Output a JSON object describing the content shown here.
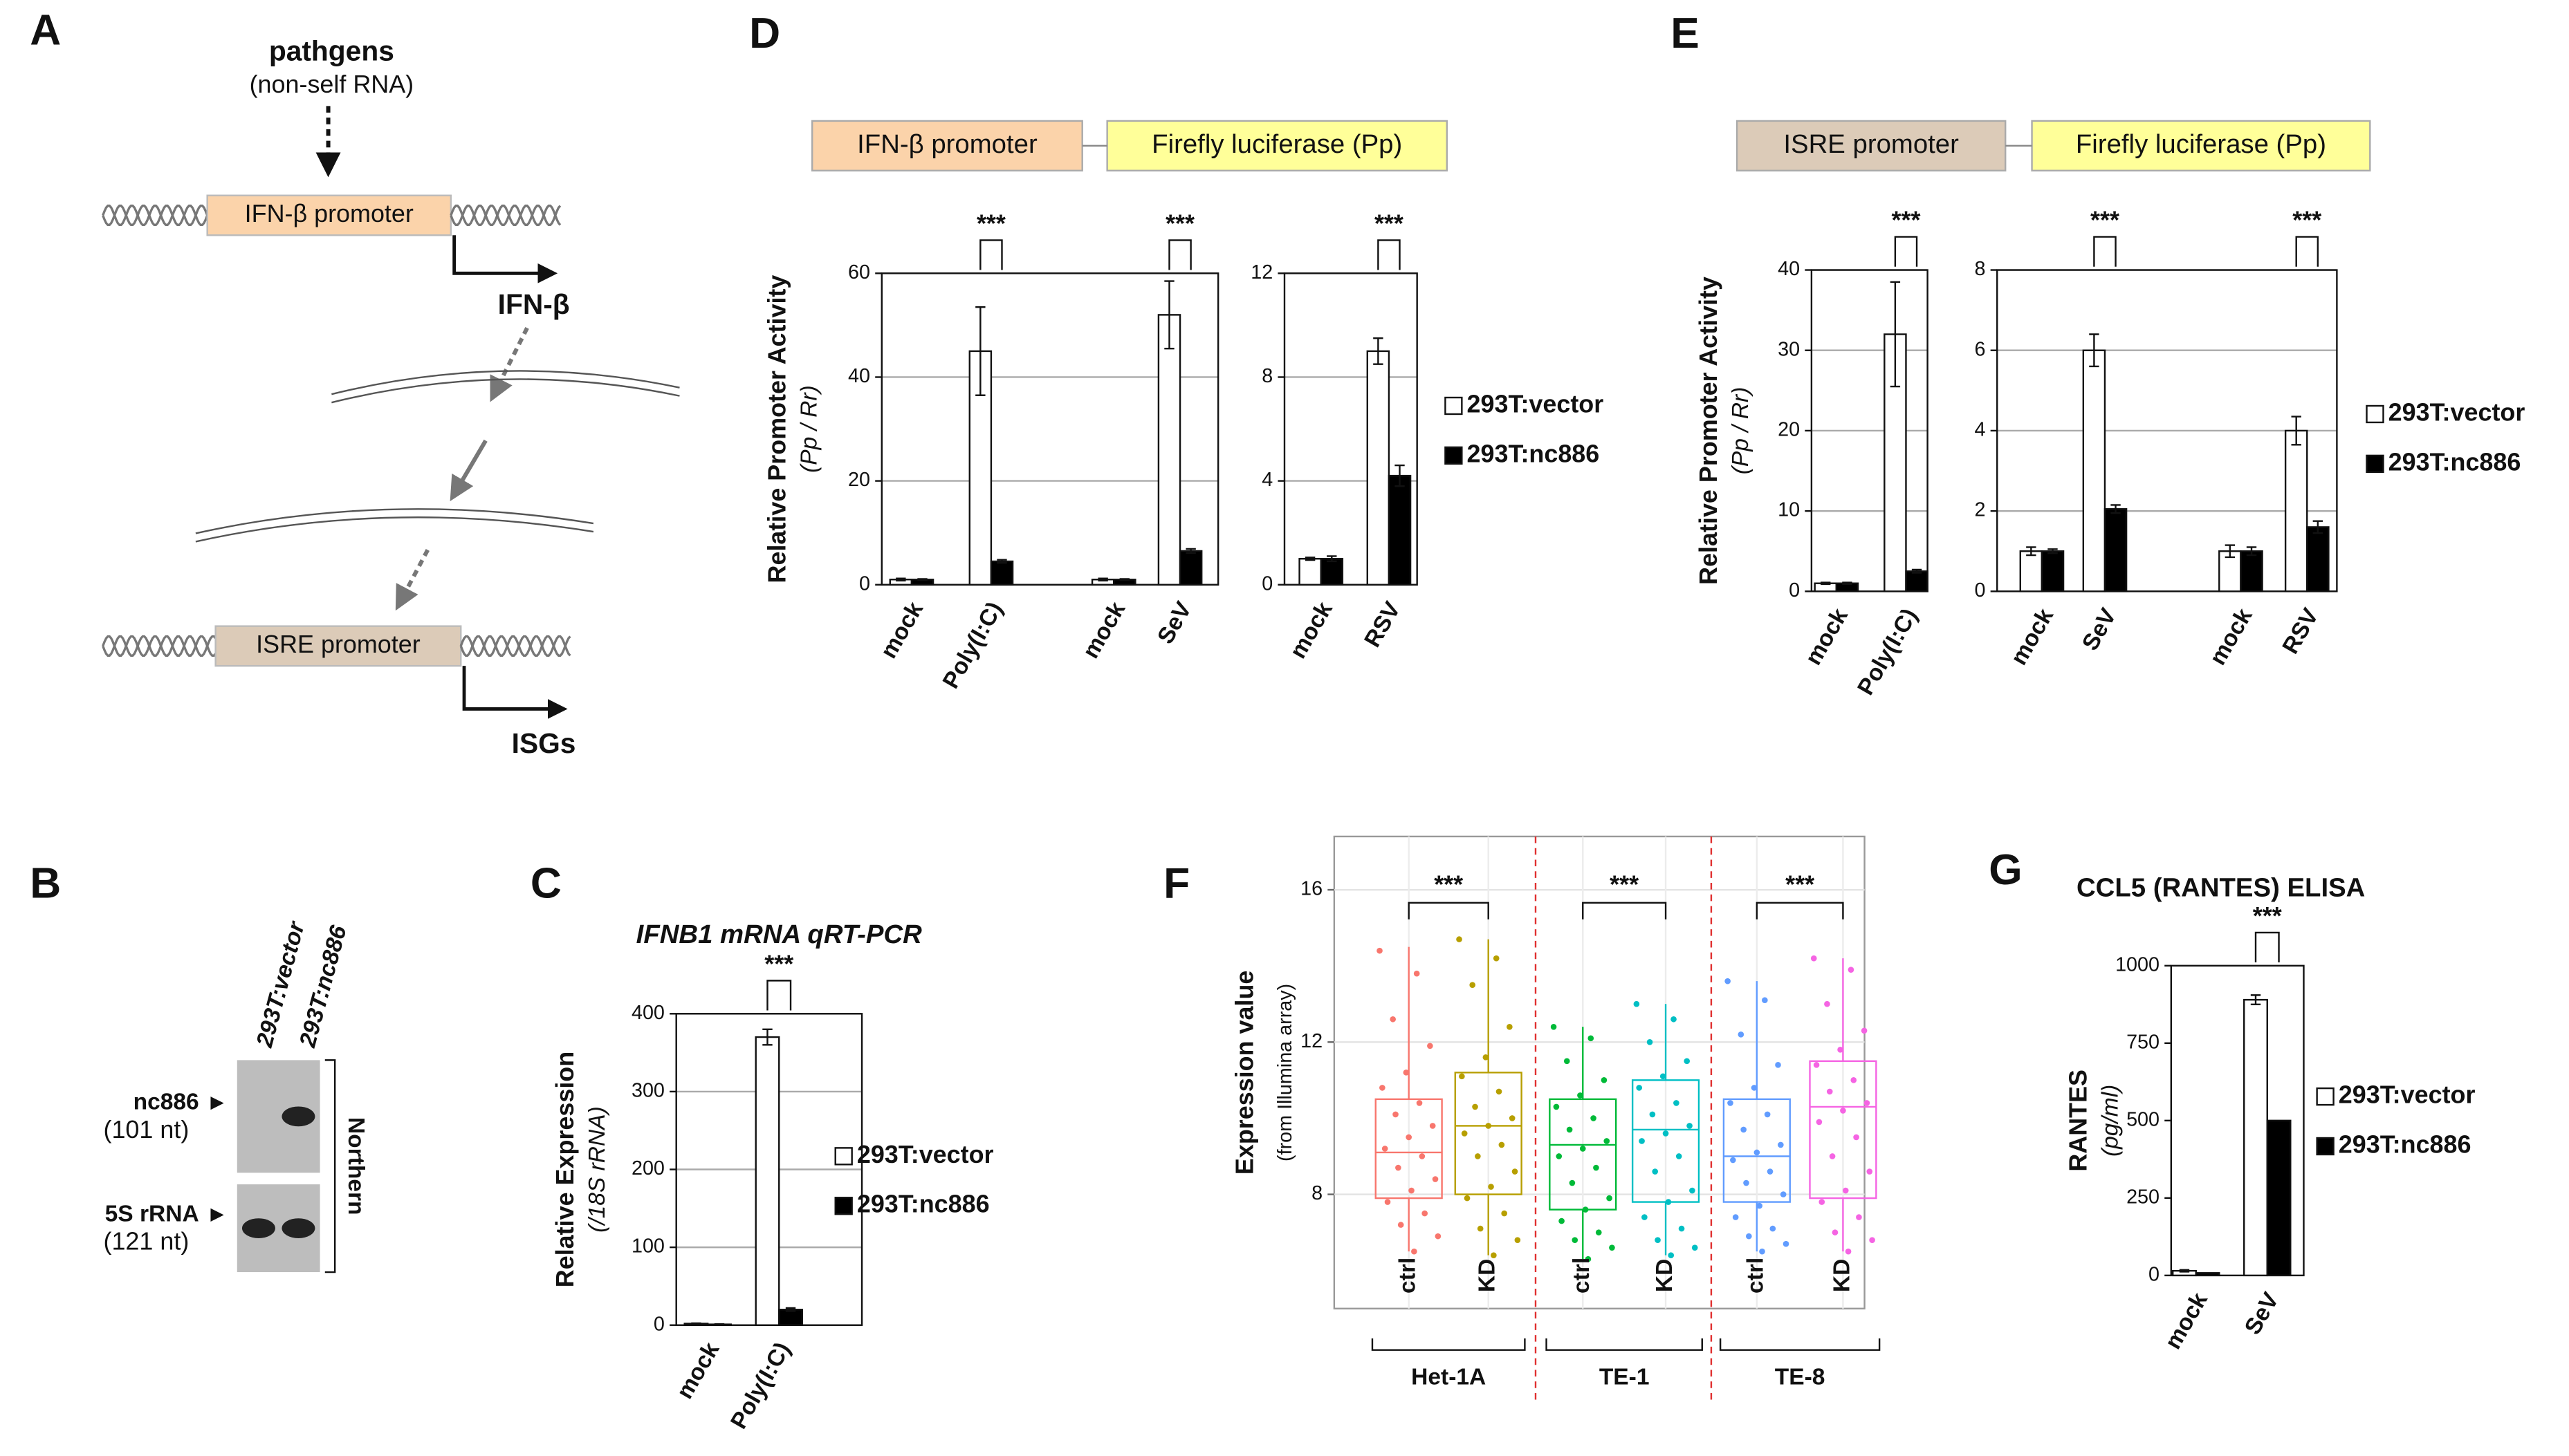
{
  "diagram": {
    "label": "A",
    "stimulus": "pathgens",
    "stimulus_note": "(non-self RNA)",
    "promoters": [
      {
        "name": "IFN-β promoter",
        "color": "#fbd3aa",
        "product": "IFN-β"
      },
      {
        "name": "ISRE promoter",
        "color": "#dccbb8",
        "product": "ISGs"
      }
    ]
  },
  "blot": {
    "label": "B",
    "lanes": [
      "293T:vector",
      "293T:nc886"
    ],
    "bands": [
      {
        "name": "nc886",
        "size": "(101 nt)"
      },
      {
        "name": "5S rRNA",
        "size": "(121 nt)"
      }
    ],
    "method": "Northern"
  },
  "chart_data": [
    {
      "type": "bar",
      "label": "C",
      "title": "IFNB1 mRNA qRT-PCR",
      "ylabel": "Relative Expression",
      "ylabel_sub": "(/18S rRNA)",
      "legend": "right",
      "grid": true,
      "series": [
        {
          "name": "293T:vector",
          "color": "#ffffff"
        },
        {
          "name": "293T:nc886",
          "color": "#000000"
        }
      ],
      "subplots": [
        {
          "categories": [
            "mock",
            "Poly(I:C)"
          ],
          "ylim": [
            0,
            400
          ],
          "yticks": [
            0,
            100,
            200,
            300,
            400
          ],
          "series": [
            {
              "values": [
                2,
                370
              ],
              "errors": [
                0.5,
                10
              ]
            },
            {
              "values": [
                1,
                20
              ],
              "errors": [
                0.3,
                2
              ]
            }
          ],
          "significance": [
            null,
            "***"
          ]
        }
      ]
    },
    {
      "type": "bar",
      "label": "D",
      "constructs": [
        "IFN-β promoter",
        "Firefly luciferase (Pp)"
      ],
      "construct_colors": [
        "#fbd3aa",
        "#ffff99"
      ],
      "ylabel": "Relative Promoter Activity",
      "ylabel_sub": "(Pp / Rr)",
      "legend": "right",
      "grid": true,
      "series": [
        {
          "name": "293T:vector",
          "color": "#ffffff"
        },
        {
          "name": "293T:nc886",
          "color": "#000000"
        }
      ],
      "subplots": [
        {
          "categories": [
            "mock",
            "Poly(I:C)",
            "mock",
            "SeV"
          ],
          "ylim": [
            0,
            60
          ],
          "yticks": [
            0,
            20,
            40,
            60
          ],
          "series": [
            {
              "values": [
                1,
                45,
                1,
                52
              ],
              "errors": [
                0.2,
                8.5,
                0.2,
                6.5
              ]
            },
            {
              "values": [
                1,
                4.5,
                1,
                6.5
              ],
              "errors": [
                0.1,
                0.3,
                0.1,
                0.4
              ]
            }
          ],
          "significance": [
            null,
            "***",
            null,
            "***"
          ]
        },
        {
          "categories": [
            "mock",
            "RSV"
          ],
          "ylim": [
            0,
            12
          ],
          "yticks": [
            0,
            4,
            8,
            12
          ],
          "series": [
            {
              "values": [
                1,
                9
              ],
              "errors": [
                0.05,
                0.5
              ]
            },
            {
              "values": [
                1,
                4.2
              ],
              "errors": [
                0.1,
                0.4
              ]
            }
          ],
          "significance": [
            null,
            "***"
          ]
        }
      ]
    },
    {
      "type": "bar",
      "label": "E",
      "constructs": [
        "ISRE promoter",
        "Firefly luciferase (Pp)"
      ],
      "construct_colors": [
        "#dccbb8",
        "#ffff99"
      ],
      "ylabel": "Relative Promoter Activity",
      "ylabel_sub": "(Pp / Rr)",
      "legend": "right",
      "grid": true,
      "series": [
        {
          "name": "293T:vector",
          "color": "#ffffff"
        },
        {
          "name": "293T:nc886",
          "color": "#000000"
        }
      ],
      "subplots": [
        {
          "categories": [
            "mock",
            "Poly(I:C)"
          ],
          "ylim": [
            0,
            40
          ],
          "yticks": [
            0,
            10,
            20,
            30,
            40
          ],
          "series": [
            {
              "values": [
                1,
                32
              ],
              "errors": [
                0.1,
                6.5
              ]
            },
            {
              "values": [
                1,
                2.5
              ],
              "errors": [
                0.1,
                0.2
              ]
            }
          ],
          "significance": [
            null,
            "***"
          ]
        },
        {
          "categories": [
            "mock",
            "SeV",
            "mock",
            "RSV"
          ],
          "ylim": [
            0,
            8
          ],
          "yticks": [
            0,
            2,
            4,
            6,
            8
          ],
          "series": [
            {
              "values": [
                1,
                6,
                1,
                4
              ],
              "errors": [
                0.1,
                0.4,
                0.15,
                0.35
              ]
            },
            {
              "values": [
                1,
                2.05,
                1,
                1.6
              ],
              "errors": [
                0.05,
                0.1,
                0.1,
                0.15
              ]
            }
          ],
          "significance": [
            null,
            "***",
            null,
            "***"
          ]
        }
      ]
    },
    {
      "type": "box",
      "label": "F",
      "ylabel": "Expression value",
      "ylabel_sub": "(from Illumina array)",
      "ylim": [
        5,
        17.4
      ],
      "yticks": [
        8,
        12,
        16
      ],
      "grid": true,
      "groups": [
        {
          "name": "Het-1A",
          "significance": "***",
          "boxes": [
            {
              "name": "ctrl",
              "color": "#f8766d",
              "whisker_low": 6.5,
              "q1": 7.9,
              "median": 9.1,
              "q3": 10.5,
              "whisker_high": 14.5,
              "points": [
                14.4,
                13.8,
                12.6,
                11.9,
                11.2,
                10.8,
                10.4,
                10.1,
                9.8,
                9.5,
                9.2,
                9.0,
                8.7,
                8.4,
                8.1,
                7.8,
                7.5,
                7.2,
                6.9,
                6.5
              ]
            },
            {
              "name": "KD",
              "color": "#b79f00",
              "whisker_low": 6.4,
              "q1": 8.0,
              "median": 9.8,
              "q3": 11.2,
              "whisker_high": 14.7,
              "points": [
                14.7,
                14.2,
                13.5,
                12.4,
                11.6,
                11.1,
                10.7,
                10.3,
                10.0,
                9.8,
                9.6,
                9.3,
                9.0,
                8.6,
                8.2,
                7.9,
                7.5,
                7.1,
                6.8,
                6.4
              ]
            }
          ]
        },
        {
          "name": "TE-1",
          "significance": "***",
          "boxes": [
            {
              "name": "ctrl",
              "color": "#00ba38",
              "whisker_low": 6.3,
              "q1": 7.6,
              "median": 9.3,
              "q3": 10.5,
              "whisker_high": 12.4,
              "points": [
                12.4,
                12.1,
                11.5,
                11.0,
                10.6,
                10.3,
                10.0,
                9.7,
                9.4,
                9.2,
                9.0,
                8.7,
                8.3,
                7.9,
                7.6,
                7.3,
                7.0,
                6.8,
                6.6,
                6.3
              ]
            },
            {
              "name": "KD",
              "color": "#00bfc4",
              "whisker_low": 6.4,
              "q1": 7.8,
              "median": 9.7,
              "q3": 11.0,
              "whisker_high": 13.0,
              "points": [
                13.0,
                12.6,
                12.0,
                11.5,
                11.1,
                10.8,
                10.4,
                10.1,
                9.8,
                9.6,
                9.4,
                9.0,
                8.6,
                8.1,
                7.8,
                7.4,
                7.1,
                6.8,
                6.6,
                6.4
              ]
            }
          ]
        },
        {
          "name": "TE-8",
          "significance": "***",
          "boxes": [
            {
              "name": "ctrl",
              "color": "#619cff",
              "whisker_low": 6.5,
              "q1": 7.8,
              "median": 9.0,
              "q3": 10.5,
              "whisker_high": 13.6,
              "points": [
                13.6,
                13.1,
                12.2,
                11.4,
                10.8,
                10.4,
                10.1,
                9.7,
                9.3,
                9.1,
                8.9,
                8.6,
                8.3,
                8.0,
                7.7,
                7.4,
                7.1,
                6.9,
                6.7,
                6.5
              ]
            },
            {
              "name": "KD",
              "color": "#f564e3",
              "whisker_low": 6.5,
              "q1": 7.9,
              "median": 10.3,
              "q3": 11.5,
              "whisker_high": 14.2,
              "points": [
                14.2,
                13.9,
                13.0,
                12.3,
                11.8,
                11.4,
                11.0,
                10.7,
                10.4,
                10.2,
                9.9,
                9.5,
                9.0,
                8.6,
                8.1,
                7.8,
                7.4,
                7.0,
                6.8,
                6.5
              ]
            }
          ]
        }
      ]
    },
    {
      "type": "bar",
      "label": "G",
      "title": "CCL5 (RANTES) ELISA",
      "ylabel": "RANTES",
      "ylabel_sub": "(pg/ml)",
      "legend": "right",
      "grid": false,
      "series": [
        {
          "name": "293T:vector",
          "color": "#ffffff"
        },
        {
          "name": "293T:nc886",
          "color": "#000000"
        }
      ],
      "subplots": [
        {
          "categories": [
            "mock",
            "SeV"
          ],
          "ylim": [
            0,
            1000
          ],
          "yticks": [
            0,
            250,
            500,
            750,
            1000
          ],
          "series": [
            {
              "values": [
                15,
                890
              ],
              "errors": [
                3,
                15
              ]
            },
            {
              "values": [
                8,
                500
              ]
            }
          ],
          "significance": [
            null,
            "***"
          ]
        }
      ]
    }
  ]
}
